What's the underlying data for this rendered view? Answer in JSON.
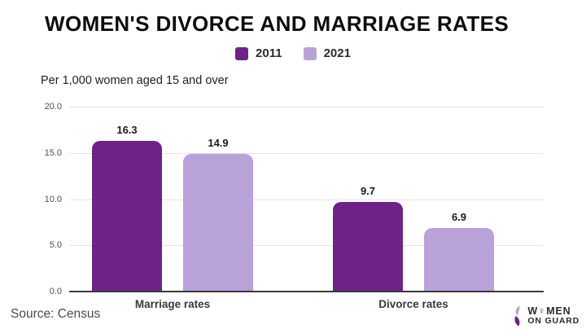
{
  "title": "WOMEN'S DIVORCE AND MARRIAGE RATES",
  "subtitle": "Per 1,000 women aged 15 and over",
  "source": "Source: Census",
  "logo": {
    "line1_pre": "W",
    "female_symbol": "♀",
    "line1_post": "MEN",
    "line2": "ON GUARD"
  },
  "colors": {
    "series_2011": "#6e2287",
    "series_2021": "#b9a1da",
    "gridline": "#e5e3e6",
    "axis": "#3b3b3b",
    "logo_accent": "#7b2d8b"
  },
  "chart_data": {
    "type": "bar",
    "title": "WOMEN'S DIVORCE AND MARRIAGE RATES",
    "subtitle": "Per 1,000 women aged 15 and over",
    "categories": [
      "Marriage rates",
      "Divorce rates"
    ],
    "series": [
      {
        "name": "2011",
        "color": "#6e2287",
        "values": [
          16.3,
          9.7
        ]
      },
      {
        "name": "2021",
        "color": "#b9a1da",
        "values": [
          14.9,
          6.9
        ]
      }
    ],
    "xlabel": "",
    "ylabel": "Per 1,000 women aged 15 and over",
    "ylim": [
      0,
      20
    ],
    "yticks": [
      0,
      5,
      10,
      15,
      20
    ],
    "ytick_labels": [
      "0.0",
      "5.0",
      "10.0",
      "15.0",
      "20.0"
    ],
    "grid": true,
    "legend_position": "top",
    "data_labels": true
  }
}
